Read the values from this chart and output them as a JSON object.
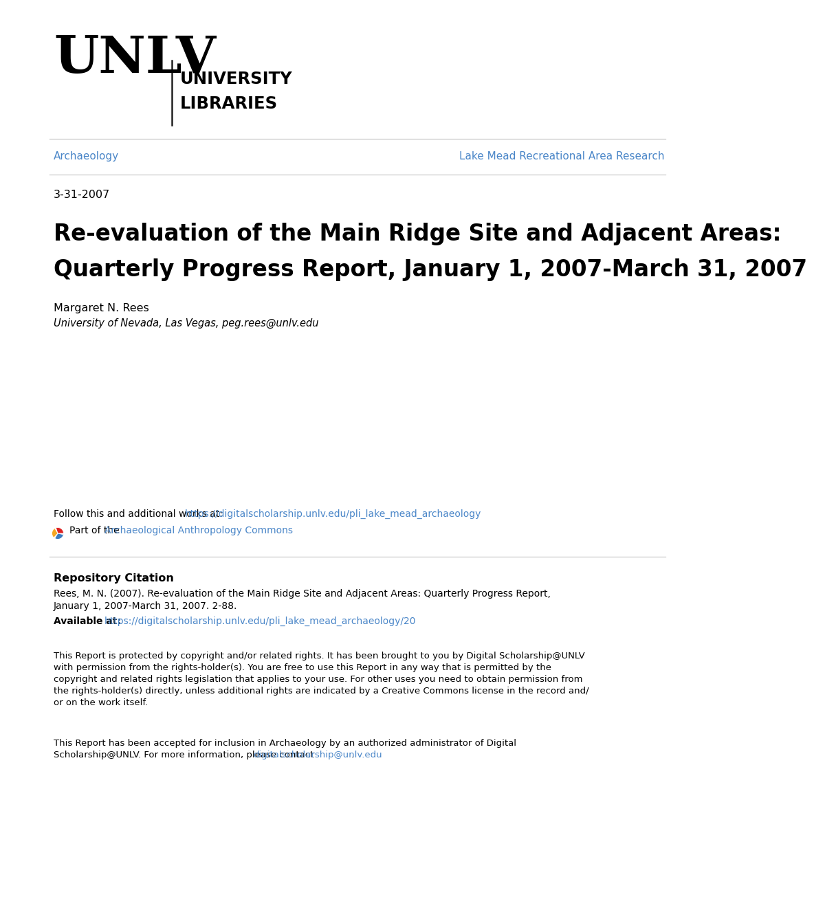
{
  "background_color": "#ffffff",
  "nav_left": "Archaeology",
  "nav_right": "Lake Mead Recreational Area Research",
  "nav_color": "#4a86c8",
  "date": "3-31-2007",
  "title_line1": "Re-evaluation of the Main Ridge Site and Adjacent Areas:",
  "title_line2": "Quarterly Progress Report, January 1, 2007-March 31, 2007",
  "author_name": "Margaret N. Rees",
  "author_affil_email": "University of Nevada, Las Vegas, peg.rees@unlv.edu",
  "follow_text": "Follow this and additional works at: ",
  "follow_url": "https://digitalscholarship.unlv.edu/pli_lake_mead_archaeology",
  "part_text": "Part of the ",
  "part_url": "Archaeological Anthropology Commons",
  "repo_heading": "Repository Citation",
  "repo_citation_line1": "Rees, M. N. (2007). Re-evaluation of the Main Ridge Site and Adjacent Areas: Quarterly Progress Report,",
  "repo_citation_line2": "January 1, 2007-March 31, 2007. 2-88.",
  "repo_available_label": "Available at: ",
  "repo_available_url": "https://digitalscholarship.unlv.edu/pli_lake_mead_archaeology/20",
  "copyright_text1_line1": "This Report is protected by copyright and/or related rights. It has been brought to you by Digital Scholarship@UNLV",
  "copyright_text1_line2": "with permission from the rights-holder(s). You are free to use this Report in any way that is permitted by the",
  "copyright_text1_line3": "copyright and related rights legislation that applies to your use. For other uses you need to obtain permission from",
  "copyright_text1_line4": "the rights-holder(s) directly, unless additional rights are indicated by a Creative Commons license in the record and/",
  "copyright_text1_line5": "or on the work itself.",
  "copyright_text2_line1": "This Report has been accepted for inclusion in Archaeology by an authorized administrator of Digital",
  "copyright_text2_line2_prefix": "Scholarship@UNLV. For more information, please contact ",
  "copyright_email": "digitalscholarship@unlv.edu",
  "copyright_text2_line2_suffix": ".",
  "link_color": "#4a86c8",
  "text_color": "#000000",
  "line_color": "#cccccc",
  "icon_colors": [
    "#dd2222",
    "#f5a623",
    "#3a7abf"
  ]
}
